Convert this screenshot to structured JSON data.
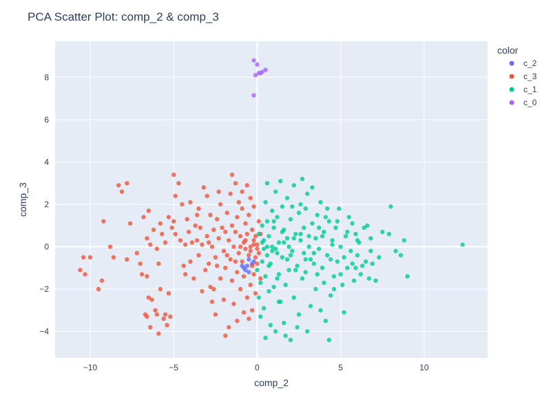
{
  "chart_data": {
    "type": "scatter",
    "title": "PCA Scatter Plot: comp_2 & comp_3",
    "xlabel": "comp_2",
    "ylabel": "comp_3",
    "xlim": [
      -12.1,
      13.8
    ],
    "ylim": [
      -5.25,
      9.7
    ],
    "x_ticks": [
      -10,
      -5,
      0,
      5,
      10
    ],
    "y_ticks": [
      -4,
      -2,
      0,
      2,
      4,
      6,
      8
    ],
    "grid": true,
    "legend": {
      "title": "color",
      "placement": "right"
    },
    "series": [
      {
        "name": "c_2",
        "color": "#636efa",
        "points": [
          [
            -0.8,
            -1.0
          ],
          [
            -0.6,
            -0.9
          ],
          [
            -0.5,
            -1.2
          ],
          [
            -0.3,
            -0.8
          ],
          [
            -0.7,
            -1.1
          ],
          [
            -0.2,
            -0.7
          ],
          [
            -0.5,
            -0.6
          ],
          [
            -0.9,
            -0.9
          ]
        ]
      },
      {
        "name": "c_3",
        "color": "#ef553b",
        "points": [
          [
            -10.6,
            -1.1
          ],
          [
            -10.4,
            -0.5
          ],
          [
            -10.3,
            -1.3
          ],
          [
            -10.0,
            -0.5
          ],
          [
            -9.5,
            -2.0
          ],
          [
            -9.3,
            -1.6
          ],
          [
            -9.2,
            1.2
          ],
          [
            -8.8,
            0.0
          ],
          [
            -8.6,
            -0.5
          ],
          [
            -8.3,
            2.9
          ],
          [
            -8.1,
            2.6
          ],
          [
            -7.8,
            3.0
          ],
          [
            -7.8,
            -0.6
          ],
          [
            -7.6,
            1.1
          ],
          [
            -7.2,
            -0.3
          ],
          [
            -7.0,
            -0.8
          ],
          [
            -6.9,
            -1.3
          ],
          [
            -6.8,
            1.4
          ],
          [
            -6.7,
            -3.2
          ],
          [
            -6.6,
            -3.3
          ],
          [
            -6.6,
            -1.4
          ],
          [
            -6.5,
            -2.4
          ],
          [
            -6.4,
            0.1
          ],
          [
            -6.4,
            -3.8
          ],
          [
            -6.3,
            -2.5
          ],
          [
            -6.1,
            -3.0
          ],
          [
            -6.0,
            -3.2
          ],
          [
            -5.9,
            -4.1
          ],
          [
            -6.6,
            0.4
          ],
          [
            -6.5,
            1.7
          ],
          [
            -6.2,
            0.8
          ],
          [
            -6.0,
            -0.1
          ],
          [
            -5.9,
            -0.8
          ],
          [
            -5.8,
            -2.0
          ],
          [
            -5.7,
            0.6
          ],
          [
            -5.6,
            -3.4
          ],
          [
            -5.5,
            -3.2
          ],
          [
            -5.4,
            -3.7
          ],
          [
            -5.3,
            -2.2
          ],
          [
            -5.2,
            -3.3
          ],
          [
            -5.0,
            1.2
          ],
          [
            -4.9,
            2.4
          ],
          [
            -5.8,
            1.1
          ],
          [
            -5.5,
            0.2
          ],
          [
            -5.3,
            1.4
          ],
          [
            -5.1,
            0.9
          ],
          [
            -4.9,
            0.6
          ],
          [
            -4.7,
            3.0
          ],
          [
            -4.6,
            0.3
          ],
          [
            -4.5,
            2.0
          ],
          [
            -4.3,
            0.1
          ],
          [
            -4.2,
            1.3
          ],
          [
            -4.1,
            0.7
          ],
          [
            -4.0,
            -0.7
          ],
          [
            -3.9,
            0.2
          ],
          [
            -3.7,
            1.0
          ],
          [
            -3.6,
            0.3
          ],
          [
            -3.5,
            -0.4
          ],
          [
            -3.4,
            0.9
          ],
          [
            -3.3,
            0.1
          ],
          [
            -3.2,
            2.8
          ],
          [
            -3.1,
            -1.1
          ],
          [
            -3.0,
            0.5
          ],
          [
            -2.9,
            -0.8
          ],
          [
            -2.8,
            1.5
          ],
          [
            -2.8,
            -1.9
          ],
          [
            -2.7,
            0.0
          ],
          [
            -2.6,
            0.8
          ],
          [
            -2.5,
            -3.2
          ],
          [
            -2.5,
            -0.5
          ],
          [
            -2.4,
            1.3
          ],
          [
            -2.3,
            0.4
          ],
          [
            -2.2,
            -1.5
          ],
          [
            -2.2,
            2.0
          ],
          [
            -2.1,
            0.9
          ],
          [
            -2.0,
            -0.2
          ],
          [
            -2.0,
            -2.5
          ],
          [
            -1.9,
            -4.2
          ],
          [
            -1.9,
            -1.0
          ],
          [
            -1.8,
            1.6
          ],
          [
            -1.7,
            0.3
          ],
          [
            -1.7,
            -3.8
          ],
          [
            -1.6,
            -0.6
          ],
          [
            -1.6,
            2.5
          ],
          [
            -1.5,
            1.0
          ],
          [
            -1.5,
            -1.6
          ],
          [
            -1.4,
            0.0
          ],
          [
            -1.4,
            -2.7
          ],
          [
            -1.3,
            0.7
          ],
          [
            -1.3,
            3.0
          ],
          [
            -1.2,
            -1.2
          ],
          [
            -1.2,
            1.4
          ],
          [
            -1.1,
            -0.3
          ],
          [
            -1.1,
            2.1
          ],
          [
            -1.0,
            0.5
          ],
          [
            -1.0,
            -2.0
          ],
          [
            -0.9,
            -0.7
          ],
          [
            -0.9,
            1.8
          ],
          [
            -0.8,
            -3.1
          ],
          [
            -0.8,
            0.2
          ],
          [
            -0.8,
            -1.4
          ],
          [
            -0.7,
            1.1
          ],
          [
            -0.7,
            -0.1
          ],
          [
            -0.6,
            2.9
          ],
          [
            -0.6,
            -2.4
          ],
          [
            -0.6,
            0.6
          ],
          [
            -0.5,
            -0.4
          ],
          [
            -0.5,
            1.5
          ],
          [
            -0.4,
            -1.8
          ],
          [
            -0.4,
            0.0
          ],
          [
            -0.4,
            2.3
          ],
          [
            -0.3,
            -0.9
          ],
          [
            -0.3,
            0.8
          ],
          [
            -0.3,
            -3.0
          ],
          [
            -0.2,
            0.3
          ],
          [
            -0.2,
            -1.3
          ],
          [
            -0.2,
            1.9
          ],
          [
            -0.1,
            -0.5
          ],
          [
            -0.1,
            0.5
          ],
          [
            -0.1,
            -2.2
          ],
          [
            0.0,
            0.1
          ],
          [
            0.0,
            -0.8
          ],
          [
            0.1,
            1.2
          ],
          [
            0.1,
            -0.3
          ],
          [
            0.2,
            0.6
          ],
          [
            0.2,
            -1.5
          ],
          [
            -3.8,
            -1.5
          ],
          [
            -3.5,
            1.8
          ],
          [
            -3.0,
            2.4
          ],
          [
            -2.6,
            -2.0
          ],
          [
            -2.3,
            2.6
          ],
          [
            -1.9,
            0.7
          ],
          [
            -1.2,
            -3.5
          ],
          [
            -0.9,
            2.6
          ],
          [
            -0.5,
            -3.4
          ],
          [
            -4.4,
            -0.9
          ],
          [
            -4.0,
            2.1
          ],
          [
            -3.3,
            -2.1
          ],
          [
            -2.7,
            -2.6
          ],
          [
            -1.5,
            3.4
          ],
          [
            -5.0,
            3.4
          ],
          [
            -4.3,
            -1.3
          ],
          [
            -3.6,
            1.5
          ],
          [
            -2.9,
            0.2
          ],
          [
            -2.4,
            -0.9
          ],
          [
            -1.8,
            -0.4
          ],
          [
            -1.3,
            -0.7
          ],
          [
            -1.0,
            0.0
          ],
          [
            -0.7,
            0.3
          ],
          [
            -0.4,
            -0.2
          ],
          [
            -0.2,
            0.1
          ],
          [
            0.0,
            -0.1
          ]
        ]
      },
      {
        "name": "c_1",
        "color": "#00cc96",
        "points": [
          [
            12.3,
            0.1
          ],
          [
            9.0,
            -1.4
          ],
          [
            8.8,
            0.3
          ],
          [
            8.6,
            -0.4
          ],
          [
            8.3,
            -0.2
          ],
          [
            8.0,
            1.9
          ],
          [
            7.9,
            0.6
          ],
          [
            7.5,
            0.7
          ],
          [
            7.1,
            -1.6
          ],
          [
            6.9,
            -0.8
          ],
          [
            6.8,
            0.4
          ],
          [
            6.7,
            -1.5
          ],
          [
            6.5,
            -0.7
          ],
          [
            6.4,
            0.9
          ],
          [
            6.2,
            -1.3
          ],
          [
            6.1,
            0.2
          ],
          [
            6.0,
            -0.4
          ],
          [
            5.9,
            0.6
          ],
          [
            5.8,
            -1.6
          ],
          [
            5.7,
            1.1
          ],
          [
            5.6,
            -0.2
          ],
          [
            5.5,
            1.4
          ],
          [
            5.4,
            -1.0
          ],
          [
            5.3,
            0.5
          ],
          [
            5.2,
            -3.1
          ],
          [
            5.1,
            -1.8
          ],
          [
            5.0,
            0.0
          ],
          [
            4.9,
            1.8
          ],
          [
            4.8,
            -0.7
          ],
          [
            4.7,
            0.9
          ],
          [
            4.6,
            -1.4
          ],
          [
            4.5,
            0.3
          ],
          [
            4.4,
            -2.3
          ],
          [
            4.3,
            -4.4
          ],
          [
            4.3,
            1.2
          ],
          [
            4.2,
            -0.4
          ],
          [
            4.1,
            -3.5
          ],
          [
            4.0,
            0.7
          ],
          [
            3.9,
            -1.0
          ],
          [
            3.8,
            2.1
          ],
          [
            3.7,
            -0.1
          ],
          [
            3.6,
            1.5
          ],
          [
            3.5,
            -2.0
          ],
          [
            3.5,
            0.4
          ],
          [
            3.4,
            -0.8
          ],
          [
            3.3,
            1.1
          ],
          [
            3.2,
            -2.8
          ],
          [
            3.1,
            0.0
          ],
          [
            3.0,
            -4.0
          ],
          [
            3.0,
            2.5
          ],
          [
            2.9,
            -0.6
          ],
          [
            2.8,
            0.9
          ],
          [
            2.7,
            -1.5
          ],
          [
            2.7,
            3.2
          ],
          [
            2.6,
            0.3
          ],
          [
            2.5,
            -3.2
          ],
          [
            2.5,
            1.6
          ],
          [
            2.4,
            -0.9
          ],
          [
            2.3,
            0.6
          ],
          [
            2.2,
            -2.4
          ],
          [
            2.2,
            2.9
          ],
          [
            2.1,
            -0.2
          ],
          [
            2.0,
            1.3
          ],
          [
            2.0,
            -4.4
          ],
          [
            1.9,
            -1.1
          ],
          [
            1.8,
            0.4
          ],
          [
            1.8,
            2.3
          ],
          [
            1.7,
            -1.8
          ],
          [
            1.6,
            0.8
          ],
          [
            1.6,
            -3.6
          ],
          [
            1.5,
            -0.5
          ],
          [
            1.5,
            1.9
          ],
          [
            1.4,
            -2.6
          ],
          [
            1.3,
            0.2
          ],
          [
            1.3,
            -1.3
          ],
          [
            1.2,
            1.4
          ],
          [
            1.2,
            -0.3
          ],
          [
            1.1,
            2.6
          ],
          [
            1.1,
            -4.0
          ],
          [
            1.0,
            0.9
          ],
          [
            1.0,
            -1.9
          ],
          [
            0.9,
            0.0
          ],
          [
            0.9,
            1.7
          ],
          [
            0.8,
            -0.8
          ],
          [
            0.8,
            -3.7
          ],
          [
            0.7,
            0.5
          ],
          [
            0.7,
            -2.1
          ],
          [
            0.6,
            1.2
          ],
          [
            0.6,
            -0.4
          ],
          [
            0.5,
            2.1
          ],
          [
            0.5,
            -1.4
          ],
          [
            0.5,
            -4.3
          ],
          [
            0.4,
            0.3
          ],
          [
            0.4,
            -2.9
          ],
          [
            0.3,
            1.0
          ],
          [
            0.3,
            -0.7
          ],
          [
            0.2,
            -1.7
          ],
          [
            0.2,
            -3.3
          ],
          [
            0.1,
            0.6
          ],
          [
            0.1,
            -2.4
          ],
          [
            0.0,
            -1.1
          ],
          [
            0.6,
            3.0
          ],
          [
            1.4,
            3.1
          ],
          [
            2.6,
            2.0
          ],
          [
            3.3,
            2.8
          ],
          [
            4.0,
            -1.7
          ],
          [
            4.6,
            -2.0
          ],
          [
            5.7,
            -0.8
          ],
          [
            6.3,
            -0.9
          ],
          [
            3.8,
            -3.0
          ],
          [
            2.4,
            -3.8
          ],
          [
            1.7,
            -4.2
          ],
          [
            3.6,
            -1.3
          ],
          [
            4.2,
            1.8
          ],
          [
            2.9,
            1.8
          ],
          [
            2.1,
            1.9
          ],
          [
            1.3,
            -2.6
          ],
          [
            0.9,
            -0.2
          ],
          [
            0.4,
            -0.1
          ],
          [
            1.9,
            0.0
          ],
          [
            2.8,
            -0.3
          ],
          [
            3.9,
            0.5
          ],
          [
            4.8,
            1.2
          ],
          [
            5.4,
            0.7
          ],
          [
            6.6,
            1.0
          ],
          [
            7.3,
            -0.5
          ],
          [
            1.0,
            1.2
          ],
          [
            1.5,
            0.7
          ],
          [
            2.2,
            0.4
          ],
          [
            2.9,
            -1.2
          ],
          [
            3.4,
            -0.3
          ],
          [
            4.4,
            -0.6
          ],
          [
            5.0,
            -1.3
          ],
          [
            5.9,
            -1.0
          ],
          [
            0.7,
            -0.9
          ],
          [
            1.2,
            -1.5
          ],
          [
            1.8,
            -0.6
          ],
          [
            2.3,
            -1.1
          ],
          [
            3.1,
            0.5
          ],
          [
            3.7,
            0.9
          ],
          [
            4.5,
            0.1
          ],
          [
            5.2,
            -0.5
          ],
          [
            6.0,
            0.3
          ],
          [
            6.8,
            -0.2
          ],
          [
            0.3,
            0.2
          ],
          [
            0.6,
            0.0
          ],
          [
            1.1,
            -0.1
          ],
          [
            1.6,
            0.2
          ],
          [
            2.0,
            -0.4
          ],
          [
            2.6,
            0.6
          ],
          [
            3.2,
            -0.6
          ],
          [
            4.1,
            1.4
          ]
        ]
      },
      {
        "name": "c_0",
        "color": "#ab63fa",
        "points": [
          [
            -0.2,
            8.8
          ],
          [
            0.0,
            8.6
          ],
          [
            0.1,
            8.2
          ],
          [
            0.3,
            8.25
          ],
          [
            -0.1,
            8.1
          ],
          [
            0.5,
            8.35
          ],
          [
            0.2,
            8.2
          ],
          [
            -0.2,
            7.15
          ]
        ]
      }
    ]
  }
}
